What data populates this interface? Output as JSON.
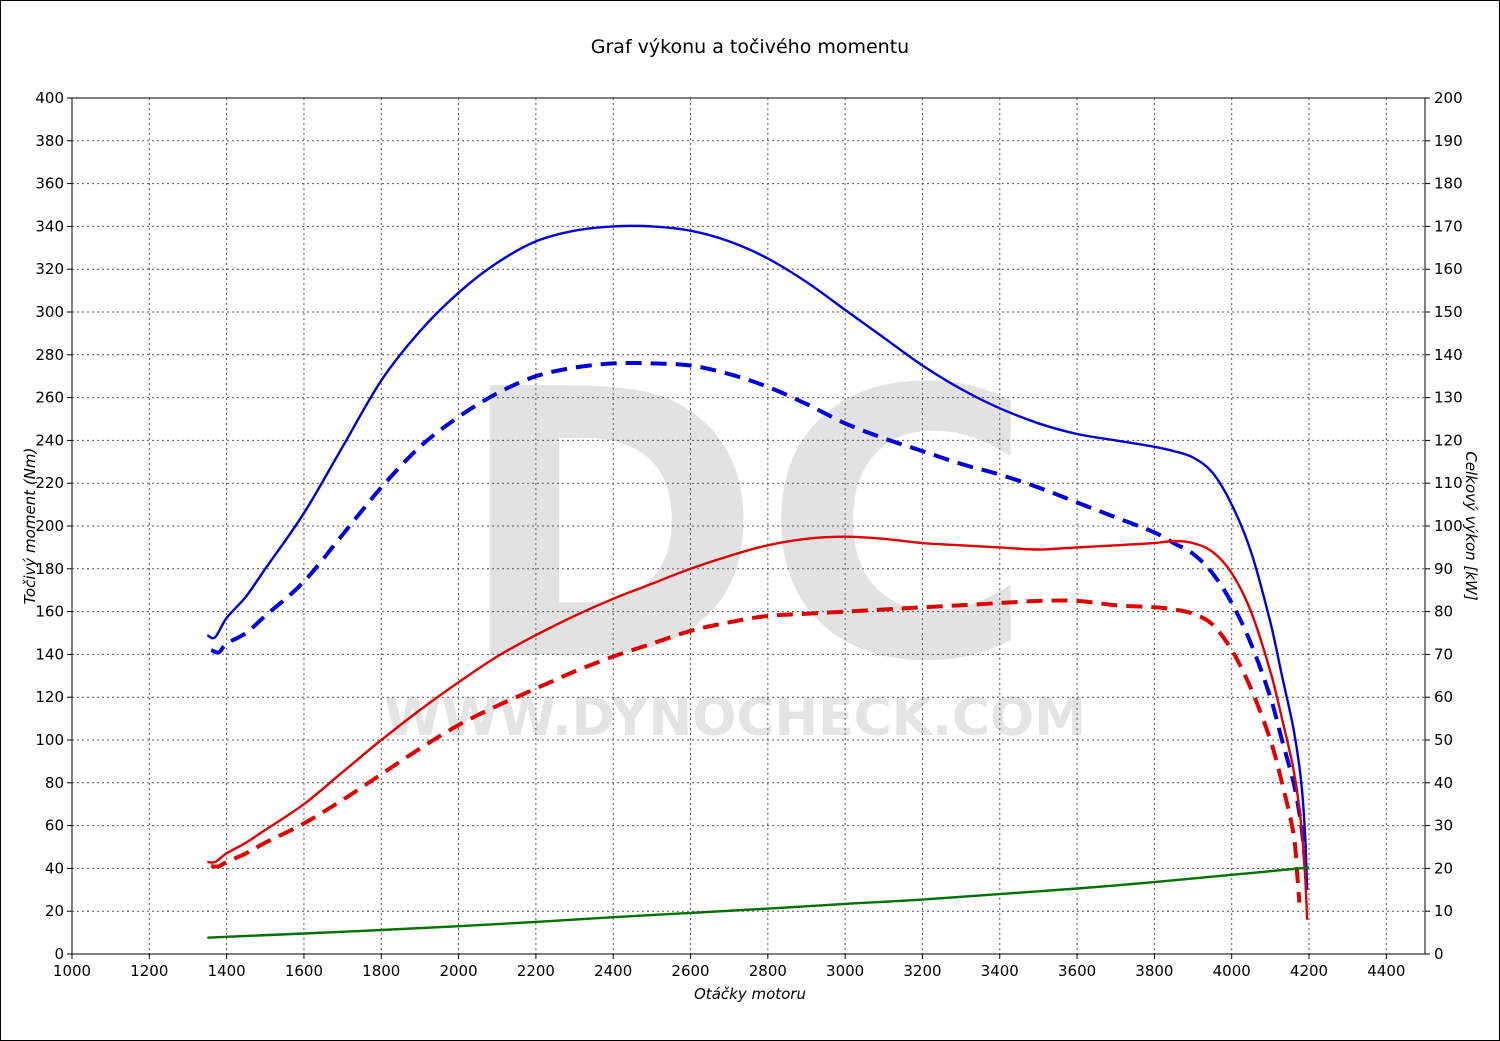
{
  "chart_data": {
    "type": "line",
    "title": "Graf výkonu a točivého momentu",
    "xlabel": "Otáčky motoru",
    "ylabel_left": "Točivý moment (Nm)",
    "ylabel_right": "Celkový výkon [kW]",
    "xlim": [
      1000,
      4500
    ],
    "ylim_left": [
      0,
      400
    ],
    "ylim_right": [
      0,
      200
    ],
    "x_ticks": [
      1000,
      1200,
      1400,
      1600,
      1800,
      2000,
      2200,
      2400,
      2600,
      2800,
      3000,
      3200,
      3400,
      3600,
      3800,
      4000,
      4200,
      4400
    ],
    "y_ticks_left": [
      0,
      20,
      40,
      60,
      80,
      100,
      120,
      140,
      160,
      180,
      200,
      220,
      240,
      260,
      280,
      300,
      320,
      340,
      360,
      380,
      400
    ],
    "y_ticks_right": [
      0,
      10,
      20,
      30,
      40,
      50,
      60,
      70,
      80,
      90,
      100,
      110,
      120,
      130,
      140,
      150,
      160,
      170,
      180,
      190,
      200
    ],
    "grid": true,
    "watermark": {
      "logo": "DC",
      "url": "WWW.DYNOCHECK.COM"
    },
    "colors": {
      "torque": "#0000dd",
      "power": "#e00000",
      "losses": "#007000",
      "grid": "#555555"
    },
    "series": [
      {
        "axis": "left",
        "color": "#0000dd",
        "dashed": false,
        "x": [
          1350,
          1370,
          1400,
          1450,
          1500,
          1600,
          1700,
          1800,
          1900,
          2000,
          2100,
          2200,
          2300,
          2400,
          2500,
          2600,
          2700,
          2800,
          2900,
          3000,
          3100,
          3200,
          3300,
          3400,
          3500,
          3600,
          3700,
          3800,
          3850,
          3900,
          3950,
          4000,
          4050,
          4100,
          4130,
          4160,
          4180,
          4190,
          4195
        ],
        "y": [
          149,
          148,
          157,
          167,
          180,
          206,
          237,
          268,
          291,
          309,
          323,
          333,
          338,
          340,
          340,
          338,
          333,
          325,
          314,
          301,
          288,
          275,
          264,
          255,
          248,
          243,
          240,
          237,
          235,
          232,
          225,
          210,
          188,
          155,
          130,
          105,
          80,
          55,
          30
        ]
      },
      {
        "axis": "left",
        "color": "#0000dd",
        "dashed": true,
        "x": [
          1360,
          1380,
          1400,
          1450,
          1500,
          1600,
          1700,
          1800,
          1900,
          2000,
          2100,
          2200,
          2300,
          2400,
          2500,
          2600,
          2700,
          2800,
          2900,
          3000,
          3100,
          3200,
          3300,
          3400,
          3500,
          3600,
          3700,
          3800,
          3850,
          3900,
          3950,
          4000,
          4050,
          4100,
          4130,
          4160,
          4180,
          4190
        ],
        "y": [
          142,
          141,
          145,
          150,
          158,
          174,
          196,
          218,
          237,
          251,
          262,
          270,
          274,
          276,
          276,
          275,
          271,
          265,
          257,
          248,
          241,
          235,
          229,
          224,
          218,
          211,
          204,
          197,
          192,
          187,
          178,
          164,
          145,
          120,
          100,
          80,
          60,
          42
        ]
      },
      {
        "axis": "right",
        "color": "#e00000",
        "dashed": false,
        "x": [
          1350,
          1370,
          1400,
          1450,
          1500,
          1600,
          1700,
          1800,
          1900,
          2000,
          2100,
          2200,
          2300,
          2400,
          2500,
          2600,
          2700,
          2800,
          2900,
          3000,
          3100,
          3200,
          3300,
          3400,
          3500,
          3600,
          3700,
          3800,
          3850,
          3900,
          3950,
          4000,
          4050,
          4100,
          4130,
          4160,
          4180,
          4190,
          4195
        ],
        "y": [
          21.5,
          21.5,
          23.5,
          26,
          29,
          35,
          42.5,
          50,
          57,
          63.5,
          69.5,
          74.5,
          79,
          83,
          86.5,
          90,
          93,
          95.5,
          97,
          97.5,
          97,
          96,
          95.5,
          95,
          94.5,
          95,
          95.5,
          96,
          96.5,
          96,
          94,
          89,
          80,
          66,
          55,
          43,
          30,
          18,
          8
        ]
      },
      {
        "axis": "right",
        "color": "#e00000",
        "dashed": true,
        "x": [
          1360,
          1380,
          1400,
          1450,
          1500,
          1600,
          1700,
          1800,
          1900,
          2000,
          2100,
          2200,
          2300,
          2400,
          2500,
          2600,
          2700,
          2800,
          2900,
          3000,
          3100,
          3200,
          3300,
          3400,
          3500,
          3600,
          3700,
          3800,
          3850,
          3900,
          3950,
          4000,
          4050,
          4100,
          4130,
          4160,
          4170,
          4175
        ],
        "y": [
          20.5,
          20.5,
          21.5,
          23.5,
          26,
          30.5,
          36,
          42,
          48,
          53.5,
          58,
          62,
          66,
          69.5,
          72.5,
          75.5,
          77.5,
          79,
          79.5,
          80,
          80.5,
          81,
          81.5,
          82,
          82.5,
          82.5,
          81.5,
          81,
          80.5,
          79.5,
          77,
          71,
          62,
          50,
          40,
          28,
          18,
          12
        ]
      },
      {
        "axis": "right",
        "color": "#007000",
        "dashed": false,
        "x": [
          1350,
          1600,
          1800,
          2000,
          2200,
          2400,
          2600,
          2800,
          3000,
          3200,
          3400,
          3600,
          3800,
          4000,
          4200
        ],
        "y": [
          3.8,
          4.8,
          5.6,
          6.5,
          7.5,
          8.6,
          9.6,
          10.6,
          11.7,
          12.7,
          14,
          15.3,
          16.8,
          18.5,
          20.2
        ]
      }
    ]
  }
}
